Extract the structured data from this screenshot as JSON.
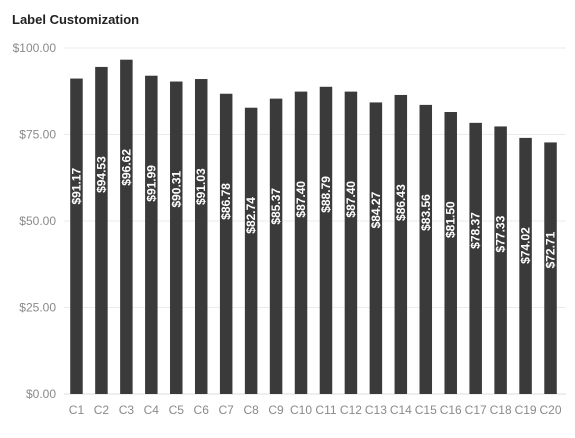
{
  "chart_data": {
    "type": "bar",
    "title": "Label Customization",
    "xlabel": "",
    "ylabel": "",
    "categories": [
      "C1",
      "C2",
      "C3",
      "C4",
      "C5",
      "C6",
      "C7",
      "C8",
      "C9",
      "C10",
      "C11",
      "C12",
      "C13",
      "C14",
      "C15",
      "C16",
      "C17",
      "C18",
      "C19",
      "C20"
    ],
    "values": [
      91.17,
      94.53,
      96.62,
      91.99,
      90.31,
      91.03,
      86.78,
      82.74,
      85.37,
      87.4,
      88.79,
      87.4,
      84.27,
      86.43,
      83.56,
      81.5,
      78.37,
      77.33,
      74.02,
      72.71
    ],
    "data_labels": [
      "$91.17",
      "$94.53",
      "$96.62",
      "$91.99",
      "$90.31",
      "$91.03",
      "$86.78",
      "$82.74",
      "$85.37",
      "$87.40",
      "$88.79",
      "$87.40",
      "$84.27",
      "$86.43",
      "$83.56",
      "$81.50",
      "$78.37",
      "$77.33",
      "$74.02",
      "$72.71"
    ],
    "ylim": [
      0,
      100
    ],
    "y_ticks": [
      0,
      25,
      50,
      75,
      100
    ],
    "y_tick_labels": [
      "$0.00",
      "$25.00",
      "$50.00",
      "$75.00",
      "$100.00"
    ],
    "grid": true,
    "legend": "none",
    "colors": {
      "bar": "#3a3a3a",
      "bar_label": "#ffffff",
      "grid": "#ebebeb",
      "tick_text": "#8a8a8a",
      "title": "#222222"
    }
  }
}
